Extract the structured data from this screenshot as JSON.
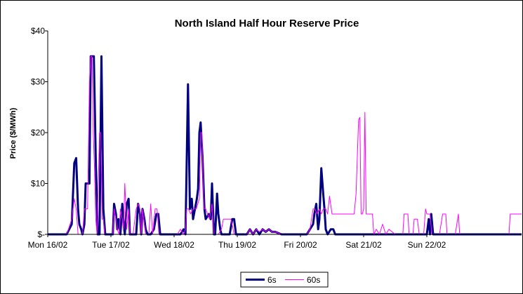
{
  "chart_data": {
    "type": "line",
    "title": "North Island Half Hour Reserve Price",
    "ylabel": "Price ($/MWh)",
    "xlabel": "",
    "ylim": [
      0,
      40
    ],
    "y_ticks": [
      {
        "value": 0,
        "label": "$-"
      },
      {
        "value": 10,
        "label": "$10"
      },
      {
        "value": 20,
        "label": "$20"
      },
      {
        "value": 30,
        "label": "$30"
      },
      {
        "value": 40,
        "label": "$40"
      }
    ],
    "xlim": [
      0,
      7.5
    ],
    "x_ticks": [
      {
        "value": 0,
        "label": "Mon 16/02"
      },
      {
        "value": 1,
        "label": "Tue 17/02"
      },
      {
        "value": 2,
        "label": "Wed 18/02"
      },
      {
        "value": 3,
        "label": "Thu 19/02"
      },
      {
        "value": 4,
        "label": "Fri 20/02"
      },
      {
        "value": 5,
        "label": "Sat 21/02"
      },
      {
        "value": 6,
        "label": "Sun 22/02"
      }
    ],
    "grid": false,
    "legend_position": "bottom",
    "series": [
      {
        "name": "6s",
        "color": "#000080",
        "stroke_width": 3,
        "points": [
          [
            0,
            0
          ],
          [
            0.1,
            0
          ],
          [
            0.2,
            0
          ],
          [
            0.3,
            0
          ],
          [
            0.38,
            2
          ],
          [
            0.42,
            14
          ],
          [
            0.45,
            15
          ],
          [
            0.48,
            5
          ],
          [
            0.5,
            2
          ],
          [
            0.53,
            1
          ],
          [
            0.55,
            0
          ],
          [
            0.58,
            2
          ],
          [
            0.6,
            10
          ],
          [
            0.63,
            10
          ],
          [
            0.66,
            10
          ],
          [
            0.68,
            35
          ],
          [
            0.7,
            35
          ],
          [
            0.73,
            35
          ],
          [
            0.76,
            15
          ],
          [
            0.79,
            0
          ],
          [
            0.82,
            0
          ],
          [
            0.85,
            35
          ],
          [
            0.88,
            5
          ],
          [
            0.91,
            0
          ],
          [
            0.95,
            0
          ],
          [
            1.0,
            0
          ],
          [
            1.03,
            0
          ],
          [
            1.05,
            6
          ],
          [
            1.08,
            4
          ],
          [
            1.1,
            1
          ],
          [
            1.12,
            3
          ],
          [
            1.15,
            0
          ],
          [
            1.18,
            6
          ],
          [
            1.2,
            2
          ],
          [
            1.22,
            0
          ],
          [
            1.25,
            6
          ],
          [
            1.28,
            7
          ],
          [
            1.3,
            0
          ],
          [
            1.35,
            0
          ],
          [
            1.4,
            0
          ],
          [
            1.43,
            6
          ],
          [
            1.46,
            4
          ],
          [
            1.48,
            0
          ],
          [
            1.5,
            5
          ],
          [
            1.53,
            3
          ],
          [
            1.55,
            1
          ],
          [
            1.58,
            0
          ],
          [
            1.63,
            0
          ],
          [
            1.68,
            1
          ],
          [
            1.72,
            4
          ],
          [
            1.75,
            4
          ],
          [
            1.78,
            0
          ],
          [
            1.85,
            0
          ],
          [
            1.9,
            0
          ],
          [
            1.95,
            0
          ],
          [
            2.0,
            0
          ],
          [
            2.05,
            0
          ],
          [
            2.1,
            0
          ],
          [
            2.15,
            1
          ],
          [
            2.18,
            0
          ],
          [
            2.22,
            29.5
          ],
          [
            2.25,
            5
          ],
          [
            2.28,
            7
          ],
          [
            2.3,
            3
          ],
          [
            2.33,
            5
          ],
          [
            2.36,
            7
          ],
          [
            2.38,
            9
          ],
          [
            2.4,
            20
          ],
          [
            2.42,
            22
          ],
          [
            2.45,
            15
          ],
          [
            2.48,
            5
          ],
          [
            2.5,
            3
          ],
          [
            2.55,
            4
          ],
          [
            2.58,
            3
          ],
          [
            2.6,
            10
          ],
          [
            2.63,
            0
          ],
          [
            2.65,
            0
          ],
          [
            2.68,
            8
          ],
          [
            2.7,
            4
          ],
          [
            2.73,
            1
          ],
          [
            2.75,
            0
          ],
          [
            2.8,
            0
          ],
          [
            2.85,
            0
          ],
          [
            2.88,
            0
          ],
          [
            2.92,
            3
          ],
          [
            2.95,
            3
          ],
          [
            2.98,
            0
          ],
          [
            3.05,
            0
          ],
          [
            3.15,
            0
          ],
          [
            3.2,
            1
          ],
          [
            3.25,
            0
          ],
          [
            3.3,
            1
          ],
          [
            3.35,
            0
          ],
          [
            3.4,
            1
          ],
          [
            3.45,
            0.5
          ],
          [
            3.5,
            1
          ],
          [
            3.55,
            0.5
          ],
          [
            3.6,
            0.5
          ],
          [
            3.7,
            0
          ],
          [
            3.8,
            0
          ],
          [
            3.9,
            0
          ],
          [
            4.0,
            0
          ],
          [
            4.05,
            0
          ],
          [
            4.1,
            0
          ],
          [
            4.15,
            1
          ],
          [
            4.2,
            2
          ],
          [
            4.22,
            4
          ],
          [
            4.25,
            6
          ],
          [
            4.28,
            1
          ],
          [
            4.3,
            3
          ],
          [
            4.33,
            13
          ],
          [
            4.36,
            8
          ],
          [
            4.38,
            5
          ],
          [
            4.4,
            1
          ],
          [
            4.43,
            0
          ],
          [
            4.48,
            1
          ],
          [
            4.52,
            1
          ],
          [
            4.55,
            0
          ],
          [
            4.6,
            0
          ],
          [
            4.65,
            0
          ],
          [
            4.7,
            0
          ],
          [
            4.8,
            0
          ],
          [
            4.9,
            0
          ],
          [
            5.0,
            0
          ],
          [
            5.2,
            0
          ],
          [
            5.4,
            0
          ],
          [
            5.6,
            0
          ],
          [
            5.8,
            0
          ],
          [
            6.0,
            0
          ],
          [
            6.03,
            3
          ],
          [
            6.05,
            0
          ],
          [
            6.07,
            4
          ],
          [
            6.1,
            0
          ],
          [
            6.2,
            0
          ],
          [
            6.4,
            0
          ],
          [
            6.6,
            0
          ],
          [
            6.8,
            0
          ],
          [
            7.0,
            0
          ],
          [
            7.2,
            0
          ],
          [
            7.4,
            0
          ],
          [
            7.5,
            0
          ]
        ]
      },
      {
        "name": "60s",
        "color": "#ff00ff",
        "stroke_width": 1,
        "points": [
          [
            0,
            0
          ],
          [
            0.1,
            0
          ],
          [
            0.2,
            0
          ],
          [
            0.3,
            0
          ],
          [
            0.38,
            3
          ],
          [
            0.42,
            7
          ],
          [
            0.45,
            5
          ],
          [
            0.48,
            0
          ],
          [
            0.5,
            0
          ],
          [
            0.55,
            0
          ],
          [
            0.58,
            5
          ],
          [
            0.6,
            5
          ],
          [
            0.63,
            5
          ],
          [
            0.66,
            30
          ],
          [
            0.68,
            35
          ],
          [
            0.7,
            35
          ],
          [
            0.72,
            20
          ],
          [
            0.74,
            13
          ],
          [
            0.76,
            3
          ],
          [
            0.78,
            0
          ],
          [
            0.82,
            20
          ],
          [
            0.84,
            20
          ],
          [
            0.86,
            3
          ],
          [
            0.88,
            3
          ],
          [
            0.9,
            0
          ],
          [
            0.95,
            0
          ],
          [
            1.0,
            0
          ],
          [
            1.03,
            0
          ],
          [
            1.05,
            5
          ],
          [
            1.08,
            3
          ],
          [
            1.1,
            1
          ],
          [
            1.13,
            0
          ],
          [
            1.15,
            5
          ],
          [
            1.18,
            3
          ],
          [
            1.2,
            1
          ],
          [
            1.22,
            10
          ],
          [
            1.25,
            1
          ],
          [
            1.28,
            5
          ],
          [
            1.3,
            0
          ],
          [
            1.35,
            0
          ],
          [
            1.4,
            5
          ],
          [
            1.43,
            6
          ],
          [
            1.46,
            5
          ],
          [
            1.48,
            0
          ],
          [
            1.5,
            5
          ],
          [
            1.53,
            2
          ],
          [
            1.55,
            0
          ],
          [
            1.6,
            0
          ],
          [
            1.63,
            6
          ],
          [
            1.66,
            0
          ],
          [
            1.7,
            5
          ],
          [
            1.73,
            5
          ],
          [
            1.76,
            0
          ],
          [
            1.8,
            0
          ],
          [
            1.85,
            0
          ],
          [
            1.9,
            0
          ],
          [
            1.95,
            0
          ],
          [
            2.0,
            0
          ],
          [
            2.05,
            0
          ],
          [
            2.1,
            1
          ],
          [
            2.15,
            0
          ],
          [
            2.18,
            1
          ],
          [
            2.2,
            5
          ],
          [
            2.23,
            5
          ],
          [
            2.26,
            4
          ],
          [
            2.3,
            5
          ],
          [
            2.35,
            5
          ],
          [
            2.4,
            7
          ],
          [
            2.42,
            20
          ],
          [
            2.44,
            20
          ],
          [
            2.47,
            5
          ],
          [
            2.5,
            5
          ],
          [
            2.53,
            4
          ],
          [
            2.56,
            3
          ],
          [
            2.6,
            6
          ],
          [
            2.63,
            0
          ],
          [
            2.66,
            0
          ],
          [
            2.7,
            0
          ],
          [
            2.75,
            1
          ],
          [
            2.78,
            3
          ],
          [
            2.82,
            3
          ],
          [
            2.86,
            3
          ],
          [
            2.9,
            3
          ],
          [
            2.95,
            0
          ],
          [
            3.0,
            0
          ],
          [
            3.1,
            0
          ],
          [
            3.15,
            0
          ],
          [
            3.2,
            1
          ],
          [
            3.25,
            0
          ],
          [
            3.3,
            1
          ],
          [
            3.35,
            0.5
          ],
          [
            3.4,
            1
          ],
          [
            3.45,
            0.5
          ],
          [
            3.5,
            1
          ],
          [
            3.55,
            0.5
          ],
          [
            3.6,
            0.5
          ],
          [
            3.7,
            0
          ],
          [
            3.8,
            0
          ],
          [
            3.9,
            0
          ],
          [
            4.0,
            0
          ],
          [
            4.05,
            0
          ],
          [
            4.1,
            0
          ],
          [
            4.15,
            1
          ],
          [
            4.2,
            5
          ],
          [
            4.23,
            5
          ],
          [
            4.26,
            4
          ],
          [
            4.3,
            5
          ],
          [
            4.33,
            4
          ],
          [
            4.36,
            5
          ],
          [
            4.4,
            5
          ],
          [
            4.43,
            4
          ],
          [
            4.46,
            7.5
          ],
          [
            4.5,
            4
          ],
          [
            4.55,
            4
          ],
          [
            4.6,
            4
          ],
          [
            4.65,
            4
          ],
          [
            4.7,
            4
          ],
          [
            4.75,
            4
          ],
          [
            4.8,
            4
          ],
          [
            4.85,
            4
          ],
          [
            4.88,
            8
          ],
          [
            4.92,
            22.5
          ],
          [
            4.94,
            23
          ],
          [
            4.96,
            4
          ],
          [
            4.98,
            4
          ],
          [
            5.0,
            5
          ],
          [
            5.02,
            24
          ],
          [
            5.04,
            4
          ],
          [
            5.06,
            4
          ],
          [
            5.1,
            4
          ],
          [
            5.14,
            4
          ],
          [
            5.16,
            0
          ],
          [
            5.2,
            1
          ],
          [
            5.25,
            0
          ],
          [
            5.3,
            2
          ],
          [
            5.35,
            0
          ],
          [
            5.4,
            1
          ],
          [
            5.5,
            0
          ],
          [
            5.62,
            0
          ],
          [
            5.64,
            4
          ],
          [
            5.7,
            4
          ],
          [
            5.72,
            0
          ],
          [
            5.78,
            0
          ],
          [
            5.8,
            3
          ],
          [
            5.85,
            3
          ],
          [
            5.88,
            0
          ],
          [
            5.95,
            0
          ],
          [
            5.98,
            5
          ],
          [
            6.0,
            4
          ],
          [
            6.02,
            4
          ],
          [
            6.05,
            4
          ],
          [
            6.08,
            0
          ],
          [
            6.2,
            0
          ],
          [
            6.25,
            4
          ],
          [
            6.3,
            4
          ],
          [
            6.32,
            0
          ],
          [
            6.4,
            0
          ],
          [
            6.45,
            0
          ],
          [
            6.5,
            4
          ],
          [
            6.52,
            0
          ],
          [
            6.6,
            0
          ],
          [
            6.8,
            0
          ],
          [
            7.0,
            0
          ],
          [
            7.2,
            0
          ],
          [
            7.3,
            0
          ],
          [
            7.32,
            4
          ],
          [
            7.4,
            4
          ],
          [
            7.5,
            4
          ]
        ]
      }
    ]
  }
}
